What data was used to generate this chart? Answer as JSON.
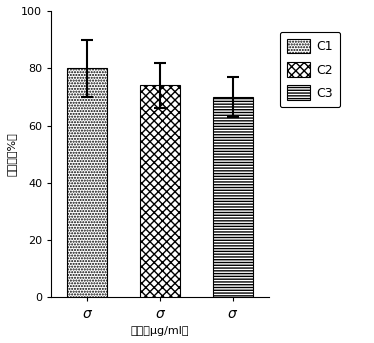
{
  "values": [
    80.0,
    74.0,
    70.0
  ],
  "errors": [
    10.0,
    8.0,
    7.0
  ],
  "legend_labels": [
    "C1",
    "C2",
    "C3"
  ],
  "ylabel": "抑制率（%）",
  "xlabel": "浓度（μg/ml）",
  "ylim": [
    0,
    100
  ],
  "yticks": [
    0,
    20,
    40,
    60,
    80,
    100
  ],
  "background_color": "#ffffff",
  "bar_width": 0.55,
  "bar_spacing": 1.0,
  "hatch_density_c1": "......",
  "hatch_density_c2": "xxxx",
  "hatch_density_c3": "-----"
}
